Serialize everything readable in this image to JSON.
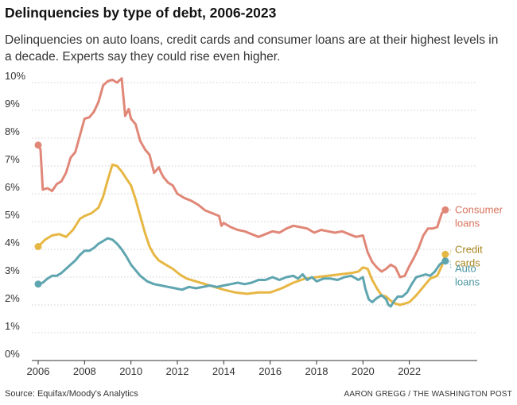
{
  "header": {
    "title": "Delinquencies by type of debt, 2006-2023",
    "subtitle": "Delinquencies on auto loans, credit cards and consumer loans are at their highest levels in a decade. Experts say they could rise even higher."
  },
  "footer": {
    "source": "Source: Equifax/Moody's Analytics",
    "credit": "AARON GREGG / THE WASHINGTON POST"
  },
  "chart_data": {
    "type": "line",
    "title": "Delinquencies by type of debt, 2006-2023",
    "xlabel": "",
    "ylabel": "",
    "xlim": [
      2006,
      2024
    ],
    "ylim": [
      0,
      10
    ],
    "grid": true,
    "x_ticks": [
      2006,
      2008,
      2010,
      2012,
      2014,
      2016,
      2018,
      2020,
      2022
    ],
    "y_ticks": [
      {
        "value": 0,
        "label": "0%"
      },
      {
        "value": 1,
        "label": "1%"
      },
      {
        "value": 2,
        "label": "2%"
      },
      {
        "value": 3,
        "label": "3%"
      },
      {
        "value": 4,
        "label": "4%"
      },
      {
        "value": 5,
        "label": "5%"
      },
      {
        "value": 6,
        "label": "6%"
      },
      {
        "value": 7,
        "label": "7%"
      },
      {
        "value": 8,
        "label": "8%"
      },
      {
        "value": 9,
        "label": "9%"
      },
      {
        "value": 10,
        "label": "10%"
      }
    ],
    "series": [
      {
        "name": "Consumer loans",
        "label_lines": [
          "Consumer",
          "loans"
        ],
        "color": "#e08777",
        "label_color": "#d9745f",
        "x": [
          2006.0,
          2006.1,
          2006.2,
          2006.4,
          2006.6,
          2006.8,
          2007.0,
          2007.2,
          2007.4,
          2007.6,
          2007.8,
          2008.0,
          2008.2,
          2008.4,
          2008.6,
          2008.8,
          2009.0,
          2009.2,
          2009.4,
          2009.6,
          2009.75,
          2009.9,
          2010.0,
          2010.2,
          2010.4,
          2010.6,
          2010.8,
          2011.0,
          2011.2,
          2011.3,
          2011.4,
          2011.5,
          2011.6,
          2011.8,
          2012.0,
          2012.3,
          2012.6,
          2012.9,
          2013.2,
          2013.5,
          2013.8,
          2013.9,
          2014.0,
          2014.3,
          2014.6,
          2014.9,
          2015.2,
          2015.5,
          2015.8,
          2016.1,
          2016.4,
          2016.7,
          2017.0,
          2017.3,
          2017.6,
          2017.9,
          2018.2,
          2018.5,
          2018.8,
          2019.1,
          2019.4,
          2019.7,
          2020.0,
          2020.2,
          2020.4,
          2020.6,
          2020.8,
          2021.0,
          2021.2,
          2021.4,
          2021.6,
          2021.8,
          2022.0,
          2022.2,
          2022.4,
          2022.6,
          2022.8,
          2023.0,
          2023.2,
          2023.4,
          2023.55
        ],
        "values": [
          7.75,
          7.6,
          6.15,
          6.2,
          6.1,
          6.35,
          6.45,
          6.75,
          7.3,
          7.5,
          8.1,
          8.7,
          8.75,
          8.95,
          9.3,
          9.9,
          10.05,
          10.1,
          10.0,
          10.15,
          8.8,
          9.05,
          8.7,
          8.5,
          7.9,
          7.6,
          7.4,
          6.75,
          6.95,
          6.75,
          6.6,
          6.5,
          6.4,
          6.3,
          6.0,
          5.85,
          5.75,
          5.6,
          5.4,
          5.3,
          5.2,
          4.85,
          4.95,
          4.8,
          4.7,
          4.65,
          4.55,
          4.45,
          4.55,
          4.65,
          4.6,
          4.75,
          4.85,
          4.8,
          4.75,
          4.6,
          4.7,
          4.65,
          4.6,
          4.65,
          4.55,
          4.45,
          4.5,
          3.9,
          3.55,
          3.35,
          3.2,
          3.3,
          3.45,
          3.35,
          3.0,
          3.05,
          3.4,
          3.7,
          4.05,
          4.5,
          4.75,
          4.75,
          4.8,
          5.3,
          5.42
        ]
      },
      {
        "name": "Credit cards",
        "label_lines": [
          "Credit",
          "cards"
        ],
        "color": "#e7b744",
        "label_color": "#a8861e",
        "x": [
          2006.0,
          2006.3,
          2006.6,
          2006.9,
          2007.2,
          2007.5,
          2007.8,
          2008.0,
          2008.3,
          2008.6,
          2008.8,
          2009.0,
          2009.2,
          2009.4,
          2009.6,
          2009.8,
          2010.0,
          2010.2,
          2010.4,
          2010.6,
          2010.8,
          2011.0,
          2011.2,
          2011.5,
          2011.8,
          2012.1,
          2012.4,
          2012.8,
          2013.2,
          2013.6,
          2014.0,
          2014.5,
          2015.0,
          2015.5,
          2016.0,
          2016.5,
          2017.0,
          2017.5,
          2018.0,
          2018.5,
          2019.0,
          2019.5,
          2019.8,
          2020.0,
          2020.2,
          2020.4,
          2020.6,
          2020.8,
          2021.0,
          2021.2,
          2021.4,
          2021.6,
          2021.8,
          2022.0,
          2022.3,
          2022.6,
          2022.9,
          2023.2,
          2023.4,
          2023.55
        ],
        "values": [
          4.1,
          4.35,
          4.5,
          4.55,
          4.45,
          4.7,
          5.1,
          5.2,
          5.3,
          5.5,
          5.9,
          6.5,
          7.05,
          7.0,
          6.8,
          6.55,
          6.3,
          5.8,
          5.2,
          4.6,
          4.1,
          3.8,
          3.6,
          3.45,
          3.3,
          3.1,
          2.95,
          2.85,
          2.75,
          2.65,
          2.55,
          2.45,
          2.4,
          2.45,
          2.45,
          2.6,
          2.8,
          2.95,
          3.0,
          3.05,
          3.1,
          3.15,
          3.2,
          3.35,
          3.3,
          2.9,
          2.6,
          2.35,
          2.3,
          2.15,
          2.05,
          2.0,
          2.05,
          2.1,
          2.35,
          2.65,
          2.95,
          3.05,
          3.4,
          3.82
        ]
      },
      {
        "name": "Auto loans",
        "label_lines": [
          "Auto",
          "loans"
        ],
        "color": "#5fa5b0",
        "label_color": "#4a95a2",
        "x": [
          2006.0,
          2006.2,
          2006.4,
          2006.6,
          2006.8,
          2007.0,
          2007.2,
          2007.4,
          2007.6,
          2007.8,
          2008.0,
          2008.2,
          2008.4,
          2008.6,
          2008.8,
          2009.0,
          2009.2,
          2009.4,
          2009.6,
          2009.8,
          2010.0,
          2010.2,
          2010.4,
          2010.7,
          2011.0,
          2011.3,
          2011.6,
          2011.9,
          2012.2,
          2012.5,
          2012.8,
          2013.1,
          2013.4,
          2013.7,
          2014.0,
          2014.3,
          2014.6,
          2014.9,
          2015.2,
          2015.5,
          2015.8,
          2016.1,
          2016.4,
          2016.7,
          2017.0,
          2017.2,
          2017.4,
          2017.6,
          2017.8,
          2018.0,
          2018.3,
          2018.6,
          2018.9,
          2019.2,
          2019.5,
          2019.8,
          2020.0,
          2020.1,
          2020.25,
          2020.4,
          2020.6,
          2020.8,
          2021.0,
          2021.1,
          2021.2,
          2021.35,
          2021.5,
          2021.7,
          2021.9,
          2022.1,
          2022.3,
          2022.5,
          2022.7,
          2022.9,
          2023.1,
          2023.3,
          2023.45,
          2023.55
        ],
        "values": [
          2.75,
          2.8,
          2.95,
          3.05,
          3.05,
          3.15,
          3.3,
          3.45,
          3.6,
          3.8,
          3.95,
          3.95,
          4.05,
          4.2,
          4.3,
          4.4,
          4.35,
          4.2,
          4.0,
          3.75,
          3.45,
          3.25,
          3.05,
          2.85,
          2.75,
          2.7,
          2.65,
          2.6,
          2.55,
          2.65,
          2.6,
          2.65,
          2.7,
          2.65,
          2.7,
          2.75,
          2.8,
          2.75,
          2.8,
          2.9,
          2.9,
          3.0,
          2.9,
          3.0,
          3.05,
          2.95,
          3.1,
          2.9,
          3.0,
          2.85,
          2.95,
          2.95,
          2.9,
          3.0,
          3.05,
          2.9,
          3.0,
          2.6,
          2.2,
          2.1,
          2.25,
          2.35,
          2.2,
          2.0,
          1.95,
          2.15,
          2.3,
          2.3,
          2.45,
          2.75,
          3.0,
          3.05,
          3.1,
          3.05,
          3.2,
          3.45,
          3.55,
          3.58
        ]
      }
    ]
  }
}
